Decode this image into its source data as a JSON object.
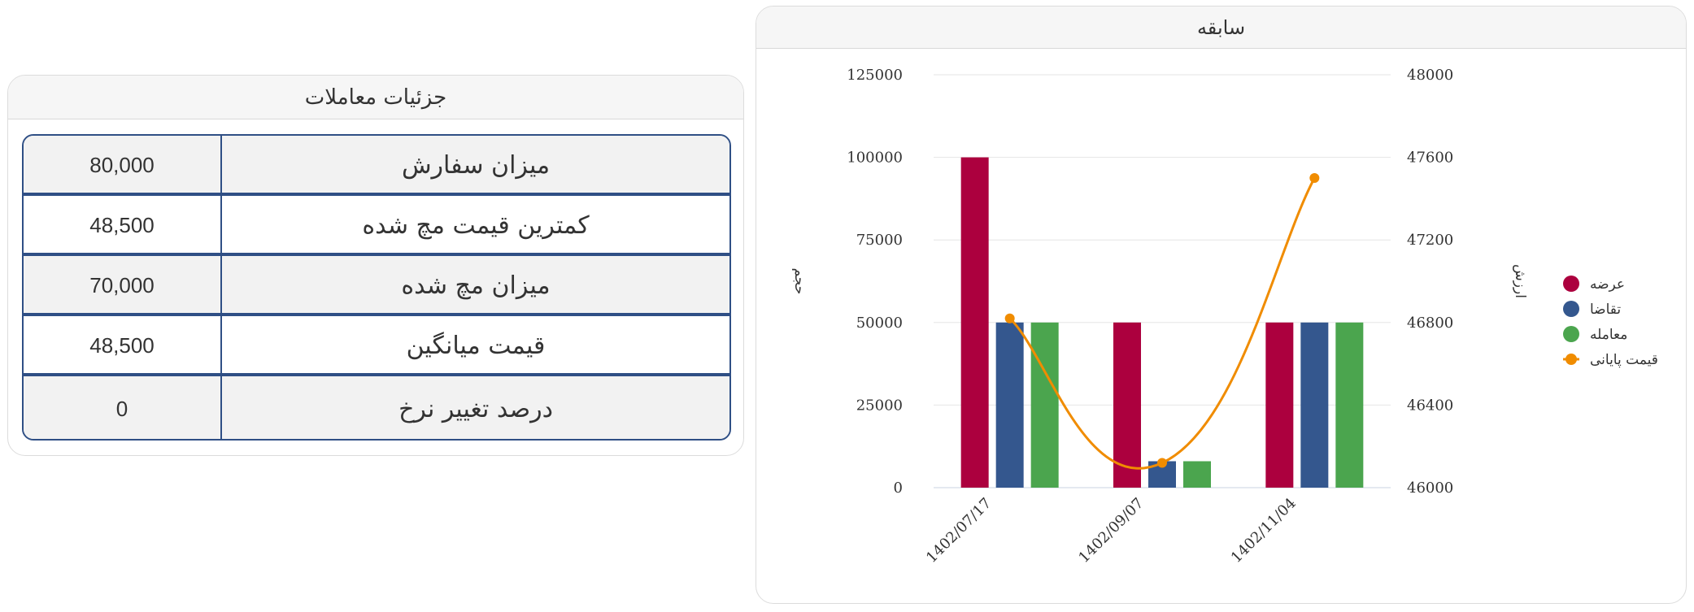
{
  "details": {
    "title": "جزئیات معاملات",
    "rows": [
      {
        "label": "میزان سفارش",
        "value": "80,000"
      },
      {
        "label": "کمترین قیمت مچ شده",
        "value": "48,500"
      },
      {
        "label": "میزان مچ شده",
        "value": "70,000"
      },
      {
        "label": "قیمت میانگین",
        "value": "48,500"
      },
      {
        "label": "درصد تغییر نرخ",
        "value": "0"
      }
    ]
  },
  "history": {
    "title": "سابقه"
  },
  "chart_data": {
    "type": "bar",
    "categories": [
      "1402/07/17",
      "1402/09/07",
      "1402/11/04"
    ],
    "series": [
      {
        "name": "عرضه",
        "type": "bar",
        "axis": "left",
        "color": "#ac003e",
        "values": [
          100000,
          50000,
          50000
        ]
      },
      {
        "name": "تقاضا",
        "type": "bar",
        "axis": "left",
        "color": "#34578e",
        "values": [
          50000,
          8000,
          50000
        ]
      },
      {
        "name": "معامله",
        "type": "bar",
        "axis": "left",
        "color": "#4ba54e",
        "values": [
          50000,
          8000,
          50000
        ]
      },
      {
        "name": "قیمت پایانی",
        "type": "line",
        "axis": "right",
        "color": "#f08c00",
        "values": [
          46820,
          46120,
          47500
        ]
      }
    ],
    "y_left": {
      "label": "حجم",
      "ticks": [
        "0",
        "25000",
        "50000",
        "75000",
        "100000",
        "125000"
      ],
      "min": 0,
      "max": 125000
    },
    "y_right": {
      "label": "ارزش",
      "ticks": [
        "46000",
        "46400",
        "46800",
        "47200",
        "47600",
        "48000"
      ],
      "min": 46000,
      "max": 48000
    },
    "grid": true,
    "legend_position": "right"
  }
}
